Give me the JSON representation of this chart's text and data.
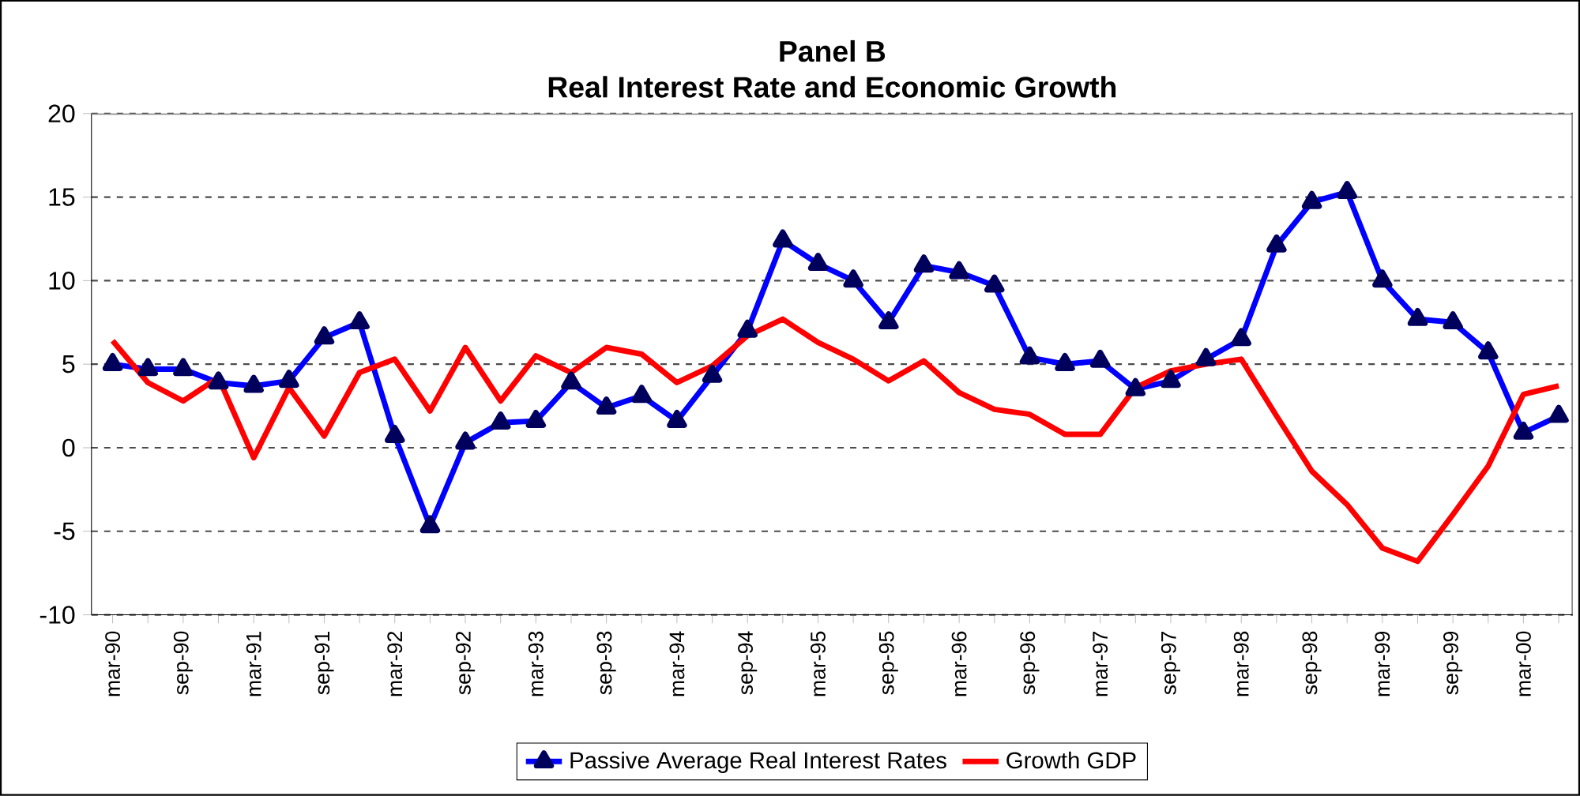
{
  "chart_data": {
    "type": "line",
    "title": "Panel B",
    "subtitle": "Real Interest Rate and Economic Growth",
    "categories": [
      "mar-90",
      null,
      "sep-90",
      null,
      "mar-91",
      null,
      "sep-91",
      null,
      "mar-92",
      null,
      "sep-92",
      null,
      "mar-93",
      null,
      "sep-93",
      null,
      "mar-94",
      null,
      "sep-94",
      null,
      "mar-95",
      null,
      "sep-95",
      null,
      "mar-96",
      null,
      "sep-96",
      null,
      "mar-97",
      null,
      "sep-97",
      null,
      "mar-98",
      null,
      "sep-98",
      null,
      "mar-99",
      null,
      "sep-99",
      null,
      "mar-00",
      null
    ],
    "series": [
      {
        "name": "Passive Average Real Interest Rates",
        "color": "#0000ff",
        "marker": "triangle",
        "values": [
          5.0,
          4.7,
          4.7,
          3.9,
          3.7,
          4.0,
          6.6,
          7.5,
          0.7,
          -4.7,
          0.3,
          1.5,
          1.6,
          3.9,
          2.4,
          3.1,
          1.6,
          4.3,
          7.0,
          12.4,
          11.0,
          10.0,
          7.5,
          10.9,
          10.5,
          9.7,
          5.4,
          5.0,
          5.2,
          3.5,
          4.0,
          5.3,
          6.5,
          12.1,
          14.7,
          15.3,
          10.0,
          7.7,
          7.5,
          5.7,
          0.9,
          1.9
        ]
      },
      {
        "name": "Growth GDP",
        "color": "#ff0000",
        "marker": "none",
        "values": [
          6.4,
          3.9,
          2.8,
          4.2,
          -0.6,
          3.6,
          0.7,
          4.5,
          5.3,
          2.2,
          6.0,
          2.8,
          5.5,
          4.5,
          6.0,
          5.6,
          3.9,
          4.9,
          6.7,
          7.7,
          6.3,
          5.3,
          4.0,
          5.2,
          3.3,
          2.3,
          2.0,
          0.8,
          0.8,
          3.6,
          4.6,
          5.0,
          5.3,
          1.9,
          -1.4,
          -3.4,
          -6.0,
          -6.8,
          -4.0,
          -1.1,
          3.2,
          3.7
        ]
      }
    ],
    "ylim": [
      -10,
      20
    ],
    "yticks": [
      -10,
      -5,
      0,
      5,
      10,
      15,
      20
    ],
    "grid": "y",
    "legend": "bottom",
    "line_style": "solid"
  }
}
